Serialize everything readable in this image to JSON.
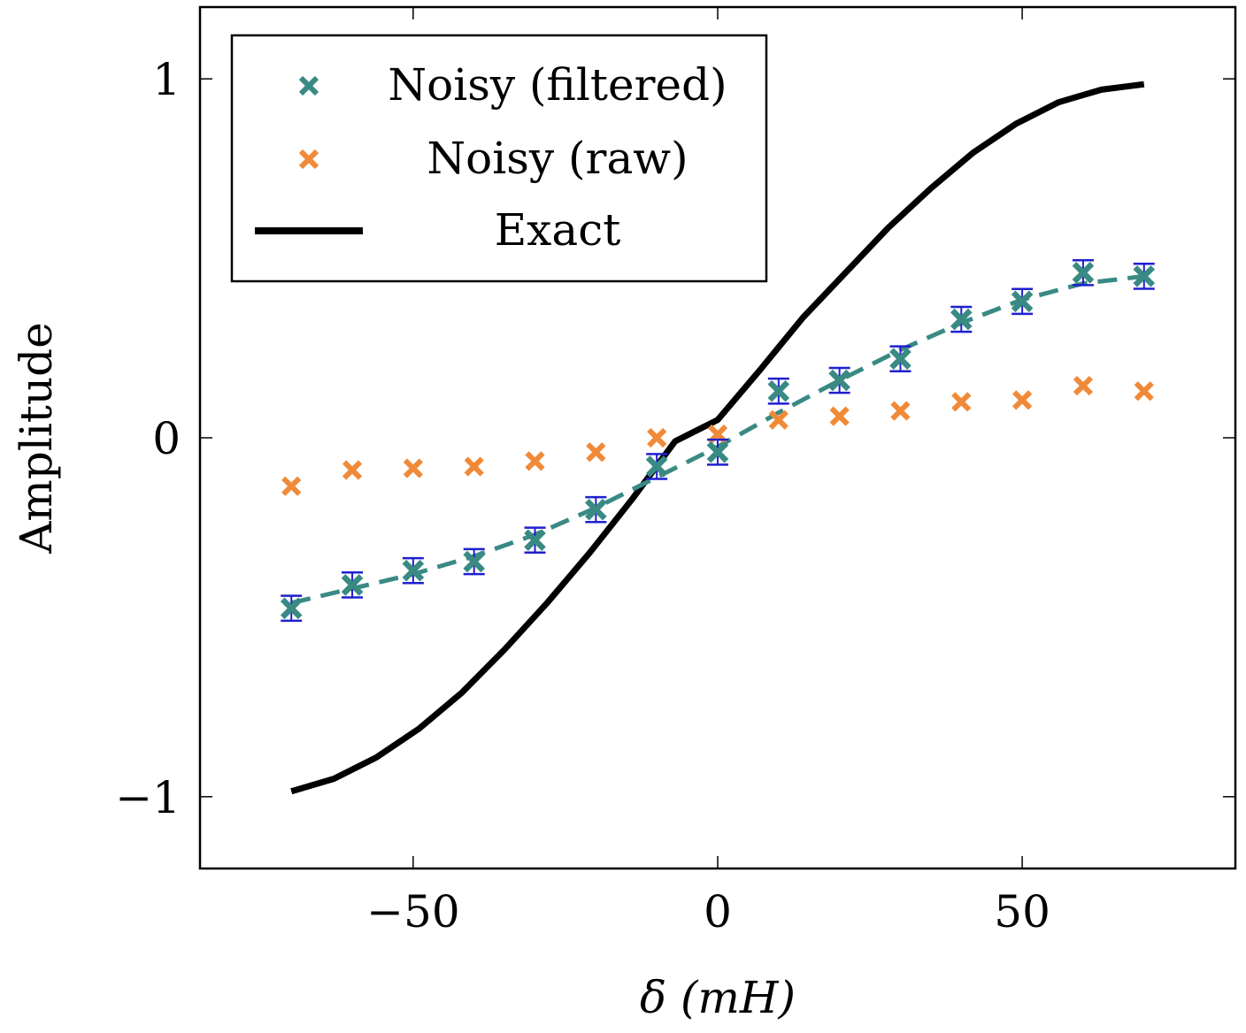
{
  "chart_data": {
    "type": "line",
    "title": "",
    "xlabel": "δ (mH)",
    "ylabel": "Amplitude",
    "xlim": [
      -85,
      85
    ],
    "ylim": [
      -1.2,
      1.2
    ],
    "xticks": [
      -50,
      0,
      50
    ],
    "xtick_labels": [
      "−50",
      "0",
      "50"
    ],
    "yticks": [
      -1,
      0,
      1
    ],
    "ytick_labels": [
      "−1",
      "0",
      "1"
    ],
    "legend_position": "top-left",
    "series": [
      {
        "name": "Noisy (filtered)",
        "kind": "scatter-errorbar-with-dashed-fit",
        "color": "#3a8a84",
        "errorbar_color": "#1f1fcf",
        "x": [
          -70,
          -60,
          -50,
          -40,
          -30,
          -20,
          -10,
          0,
          10,
          20,
          30,
          40,
          50,
          60,
          70
        ],
        "y": [
          -0.475,
          -0.41,
          -0.37,
          -0.345,
          -0.285,
          -0.2,
          -0.08,
          -0.04,
          0.13,
          0.16,
          0.22,
          0.33,
          0.38,
          0.46,
          0.45
        ],
        "yerr": [
          0.015,
          0.015,
          0.015,
          0.015,
          0.015,
          0.015,
          0.015,
          0.015,
          0.015,
          0.015,
          0.015,
          0.015,
          0.015,
          0.015,
          0.015
        ],
        "fit_x": [
          -70,
          -60,
          -50,
          -40,
          -30,
          -20,
          -10,
          0,
          10,
          20,
          30,
          40,
          50,
          60,
          70
        ],
        "fit_y": [
          -0.46,
          -0.42,
          -0.38,
          -0.33,
          -0.27,
          -0.195,
          -0.11,
          -0.025,
          0.07,
          0.16,
          0.245,
          0.32,
          0.385,
          0.43,
          0.45
        ]
      },
      {
        "name": "Noisy (raw)",
        "kind": "scatter",
        "color": "#f08a38",
        "x": [
          -70,
          -60,
          -50,
          -40,
          -30,
          -20,
          -10,
          0,
          10,
          20,
          30,
          40,
          50,
          60,
          70
        ],
        "y": [
          -0.135,
          -0.09,
          -0.085,
          -0.08,
          -0.065,
          -0.04,
          0.0,
          0.01,
          0.05,
          0.06,
          0.075,
          0.1,
          0.105,
          0.145,
          0.13
        ]
      },
      {
        "name": "Exact",
        "kind": "line",
        "color": "#000000",
        "x": [
          -70,
          -63,
          -56,
          -49,
          -42,
          -35,
          -28,
          -21,
          -14,
          -7,
          0,
          7,
          14,
          21,
          28,
          35,
          42,
          49,
          56,
          63,
          70
        ],
        "y": [
          -0.985,
          -0.95,
          -0.89,
          -0.81,
          -0.71,
          -0.59,
          -0.46,
          -0.32,
          -0.17,
          -0.01,
          0.05,
          0.19,
          0.335,
          0.46,
          0.585,
          0.695,
          0.795,
          0.875,
          0.935,
          0.97,
          0.985
        ]
      }
    ]
  }
}
